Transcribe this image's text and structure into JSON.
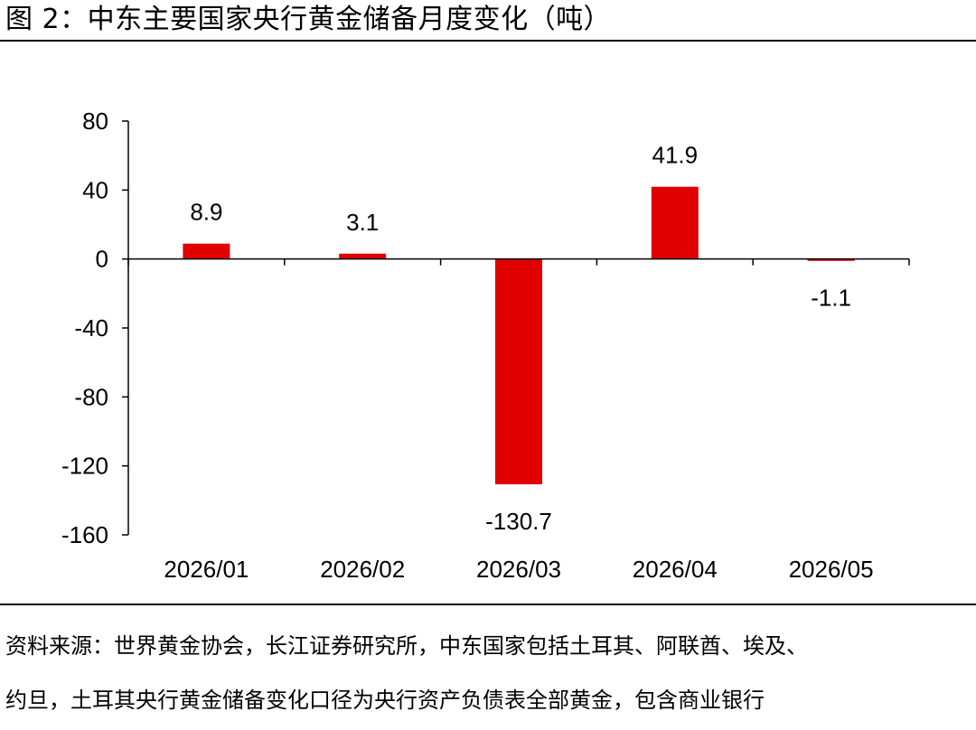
{
  "figure": {
    "title": "图 2：中东主要国家央行黄金储备月度变化（吨）"
  },
  "source_note": {
    "line1": "资料来源：世界黄金协会，长江证券研究所，中东国家包括土耳其、阿联酋、埃及、",
    "line2": "约旦，土耳其央行黄金储备变化口径为央行资产负债表全部黄金，包含商业银行"
  },
  "colors": {
    "bar": "#e00000",
    "axis": "#000000"
  },
  "chart_data": {
    "type": "bar",
    "categories": [
      "2026/01",
      "2026/02",
      "2026/03",
      "2026/04",
      "2026/05"
    ],
    "values": [
      8.9,
      3.1,
      -130.7,
      41.9,
      -1.1
    ],
    "data_labels": [
      "8.9",
      "3.1",
      "-130.7",
      "41.9",
      "-1.1"
    ],
    "ylim": [
      -160,
      80
    ],
    "yticks": [
      80,
      40,
      0,
      -40,
      -80,
      -120,
      -160
    ],
    "xlabel": "",
    "ylabel": "",
    "grid": false,
    "legend": "none"
  }
}
